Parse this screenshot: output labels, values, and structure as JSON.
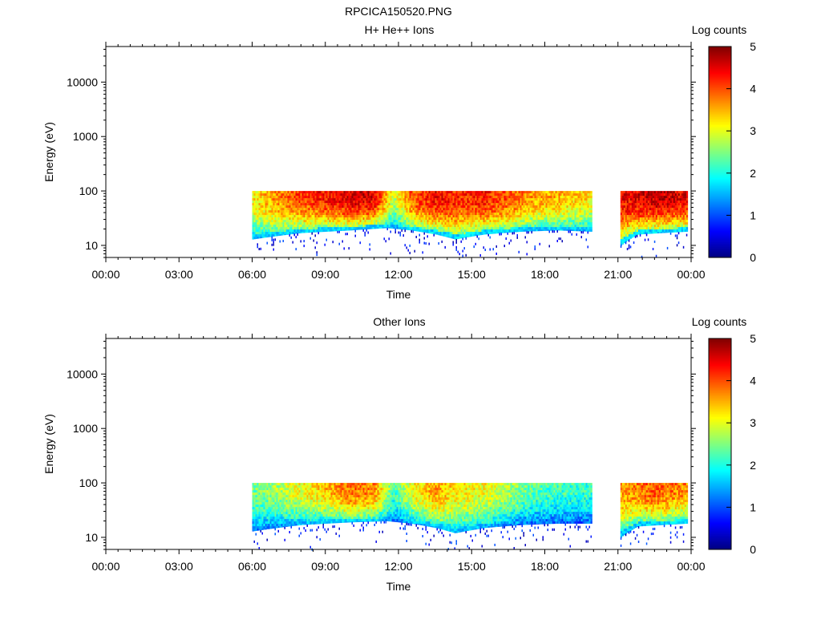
{
  "figure_title": "RPCICA150520.PNG",
  "chart_data": [
    {
      "type": "heatmap",
      "title": "H+ He++ Ions",
      "xlabel": "Time",
      "ylabel": "Energy (eV)",
      "x_ticks": [
        "00:00",
        "03:00",
        "06:00",
        "09:00",
        "12:00",
        "15:00",
        "18:00",
        "21:00",
        "00:00"
      ],
      "x_range_hours": [
        0,
        24
      ],
      "y_scale": "log",
      "y_ticks": [
        10,
        100,
        1000,
        10000
      ],
      "y_tick_labels": [
        "10",
        "100",
        "1000",
        "10000"
      ],
      "ylim": [
        6,
        45000
      ],
      "colorbar": {
        "label": "Log counts",
        "range": [
          0,
          5
        ],
        "ticks": [
          "0",
          "1",
          "2",
          "3",
          "4",
          "5"
        ],
        "colormap": "jet"
      },
      "data_intervals_hours": [
        [
          6.0,
          19.9
        ],
        [
          21.1,
          23.8
        ]
      ],
      "energy_upper_ev": 100,
      "energy_lower_cutoff_ev": [
        [
          6.0,
          13
        ],
        [
          8.0,
          17
        ],
        [
          10.0,
          19
        ],
        [
          11.5,
          21
        ],
        [
          12.5,
          19
        ],
        [
          13.5,
          16
        ],
        [
          14.3,
          13
        ],
        [
          15.5,
          16
        ],
        [
          17.0,
          18
        ],
        [
          18.5,
          19
        ],
        [
          19.9,
          18
        ],
        [
          21.1,
          10
        ],
        [
          21.8,
          16
        ],
        [
          23.8,
          18
        ]
      ],
      "log_counts_profile": [
        [
          6.0,
          3.2
        ],
        [
          7.0,
          3.7
        ],
        [
          8.0,
          4.1
        ],
        [
          9.0,
          4.3
        ],
        [
          10.0,
          4.6
        ],
        [
          11.0,
          4.5
        ],
        [
          11.8,
          2.8
        ],
        [
          12.5,
          4.0
        ],
        [
          13.5,
          4.4
        ],
        [
          14.5,
          4.2
        ],
        [
          15.5,
          4.3
        ],
        [
          16.5,
          4.0
        ],
        [
          17.5,
          3.6
        ],
        [
          18.5,
          3.5
        ],
        [
          19.9,
          3.2
        ],
        [
          21.1,
          4.4
        ],
        [
          22.5,
          4.7
        ],
        [
          23.8,
          4.5
        ]
      ]
    },
    {
      "type": "heatmap",
      "title": "Other Ions",
      "xlabel": "Time",
      "ylabel": "Energy (eV)",
      "x_ticks": [
        "00:00",
        "03:00",
        "06:00",
        "09:00",
        "12:00",
        "15:00",
        "18:00",
        "21:00",
        "00:00"
      ],
      "x_range_hours": [
        0,
        24
      ],
      "y_scale": "log",
      "y_ticks": [
        10,
        100,
        1000,
        10000
      ],
      "y_tick_labels": [
        "10",
        "100",
        "1000",
        "10000"
      ],
      "ylim": [
        6,
        45000
      ],
      "colorbar": {
        "label": "Log counts",
        "range": [
          0,
          5
        ],
        "ticks": [
          "0",
          "1",
          "2",
          "3",
          "4",
          "5"
        ],
        "colormap": "jet"
      },
      "data_intervals_hours": [
        [
          6.0,
          19.9
        ],
        [
          21.1,
          23.8
        ]
      ],
      "energy_upper_ev": 100,
      "energy_lower_cutoff_ev": [
        [
          6.0,
          13
        ],
        [
          8.0,
          17
        ],
        [
          10.0,
          19
        ],
        [
          11.5,
          20
        ],
        [
          12.5,
          18
        ],
        [
          13.5,
          15
        ],
        [
          14.3,
          12
        ],
        [
          15.5,
          15
        ],
        [
          17.0,
          17
        ],
        [
          18.5,
          18
        ],
        [
          19.9,
          18
        ],
        [
          21.1,
          10
        ],
        [
          21.8,
          16
        ],
        [
          23.8,
          18
        ]
      ],
      "log_counts_profile": [
        [
          6.0,
          2.4
        ],
        [
          7.0,
          2.7
        ],
        [
          8.0,
          3.1
        ],
        [
          9.0,
          3.4
        ],
        [
          10.0,
          3.9
        ],
        [
          11.0,
          3.7
        ],
        [
          11.8,
          2.2
        ],
        [
          12.5,
          3.1
        ],
        [
          13.5,
          3.6
        ],
        [
          14.5,
          3.2
        ],
        [
          15.5,
          3.1
        ],
        [
          16.5,
          2.7
        ],
        [
          17.5,
          2.3
        ],
        [
          18.5,
          2.2
        ],
        [
          19.9,
          2.1
        ],
        [
          21.1,
          3.6
        ],
        [
          22.5,
          4.0
        ],
        [
          23.8,
          3.7
        ]
      ]
    }
  ]
}
